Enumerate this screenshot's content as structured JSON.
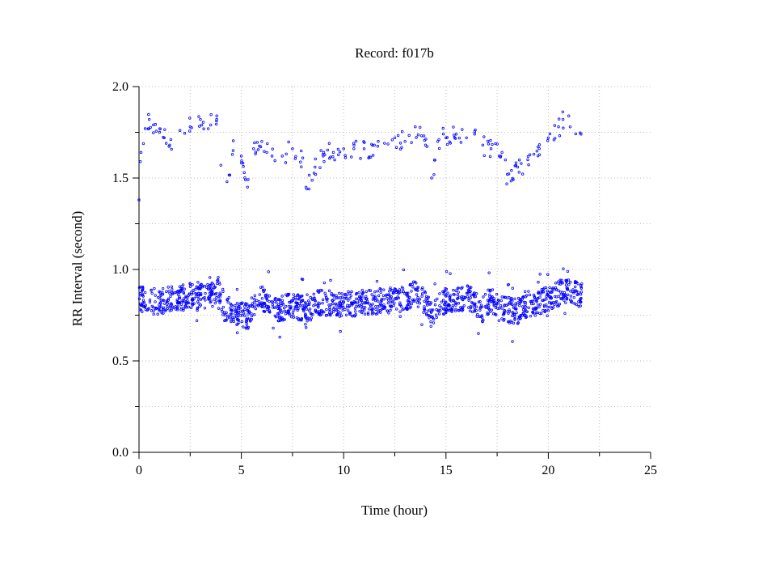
{
  "chart_data": {
    "type": "scatter",
    "title": "Record:  f017b",
    "xlabel": "Time (hour)",
    "ylabel": "RR Interval (second)",
    "xlim": [
      0,
      25
    ],
    "ylim": [
      0,
      2
    ],
    "x_ticks": [
      "0",
      "5",
      "10",
      "15",
      "20",
      "25"
    ],
    "y_ticks": [
      "0.0",
      "0.5",
      "1.0",
      "1.5",
      "2.0"
    ],
    "grid": true,
    "marker_color": "#0000ff",
    "series": [
      {
        "values_main_band": [
          [
            0.0,
            0.84
          ],
          [
            0.5,
            0.83
          ],
          [
            1.0,
            0.82
          ],
          [
            1.5,
            0.84
          ],
          [
            2.0,
            0.84
          ],
          [
            2.5,
            0.86
          ],
          [
            3.0,
            0.85
          ],
          [
            3.5,
            0.85
          ],
          [
            3.9,
            0.9
          ],
          [
            4.2,
            0.78
          ],
          [
            4.6,
            0.77
          ],
          [
            5.0,
            0.76
          ],
          [
            5.3,
            0.74
          ],
          [
            5.7,
            0.82
          ],
          [
            6.0,
            0.84
          ],
          [
            6.3,
            0.83
          ],
          [
            6.6,
            0.78
          ],
          [
            7.0,
            0.79
          ],
          [
            7.5,
            0.8
          ],
          [
            8.0,
            0.79
          ],
          [
            8.2,
            0.74
          ],
          [
            8.5,
            0.81
          ],
          [
            9.0,
            0.82
          ],
          [
            9.5,
            0.81
          ],
          [
            10.0,
            0.81
          ],
          [
            10.5,
            0.81
          ],
          [
            11.0,
            0.82
          ],
          [
            11.5,
            0.82
          ],
          [
            12.0,
            0.83
          ],
          [
            12.5,
            0.83
          ],
          [
            13.0,
            0.84
          ],
          [
            13.5,
            0.88
          ],
          [
            14.0,
            0.81
          ],
          [
            14.3,
            0.76
          ],
          [
            14.6,
            0.8
          ],
          [
            15.0,
            0.83
          ],
          [
            15.5,
            0.83
          ],
          [
            16.0,
            0.85
          ],
          [
            16.5,
            0.81
          ],
          [
            16.8,
            0.78
          ],
          [
            17.2,
            0.84
          ],
          [
            17.6,
            0.78
          ],
          [
            18.0,
            0.78
          ],
          [
            18.5,
            0.77
          ],
          [
            19.0,
            0.8
          ],
          [
            19.5,
            0.82
          ],
          [
            20.0,
            0.84
          ],
          [
            20.5,
            0.87
          ],
          [
            21.0,
            0.89
          ],
          [
            21.6,
            0.86
          ]
        ],
        "values_upper_band": [
          [
            0.0,
            1.38
          ],
          [
            0.1,
            1.64
          ],
          [
            0.3,
            1.77
          ],
          [
            0.5,
            1.82
          ],
          [
            1.0,
            1.75
          ],
          [
            1.5,
            1.68
          ],
          [
            2.0,
            1.76
          ],
          [
            2.5,
            1.78
          ],
          [
            3.0,
            1.82
          ],
          [
            3.5,
            1.79
          ],
          [
            3.8,
            1.84
          ],
          [
            4.0,
            1.57
          ],
          [
            4.3,
            1.48
          ],
          [
            4.6,
            1.65
          ],
          [
            5.0,
            1.62
          ],
          [
            5.3,
            1.45
          ],
          [
            5.6,
            1.66
          ],
          [
            6.0,
            1.7
          ],
          [
            6.5,
            1.62
          ],
          [
            7.0,
            1.62
          ],
          [
            7.5,
            1.66
          ],
          [
            8.0,
            1.61
          ],
          [
            8.2,
            1.44
          ],
          [
            8.6,
            1.56
          ],
          [
            9.0,
            1.62
          ],
          [
            9.5,
            1.64
          ],
          [
            10.0,
            1.66
          ],
          [
            10.5,
            1.66
          ],
          [
            11.0,
            1.66
          ],
          [
            11.5,
            1.68
          ],
          [
            12.0,
            1.69
          ],
          [
            12.5,
            1.72
          ],
          [
            13.0,
            1.7
          ],
          [
            13.5,
            1.78
          ],
          [
            14.0,
            1.68
          ],
          [
            14.3,
            1.5
          ],
          [
            14.6,
            1.7
          ],
          [
            15.0,
            1.72
          ],
          [
            15.5,
            1.74
          ],
          [
            16.0,
            1.72
          ],
          [
            16.4,
            1.74
          ],
          [
            16.8,
            1.68
          ],
          [
            17.2,
            1.66
          ],
          [
            17.6,
            1.62
          ],
          [
            18.0,
            1.52
          ],
          [
            18.5,
            1.56
          ],
          [
            19.0,
            1.6
          ],
          [
            19.5,
            1.67
          ],
          [
            20.0,
            1.72
          ],
          [
            20.5,
            1.78
          ],
          [
            21.0,
            1.84
          ],
          [
            21.6,
            1.74
          ]
        ]
      }
    ]
  }
}
